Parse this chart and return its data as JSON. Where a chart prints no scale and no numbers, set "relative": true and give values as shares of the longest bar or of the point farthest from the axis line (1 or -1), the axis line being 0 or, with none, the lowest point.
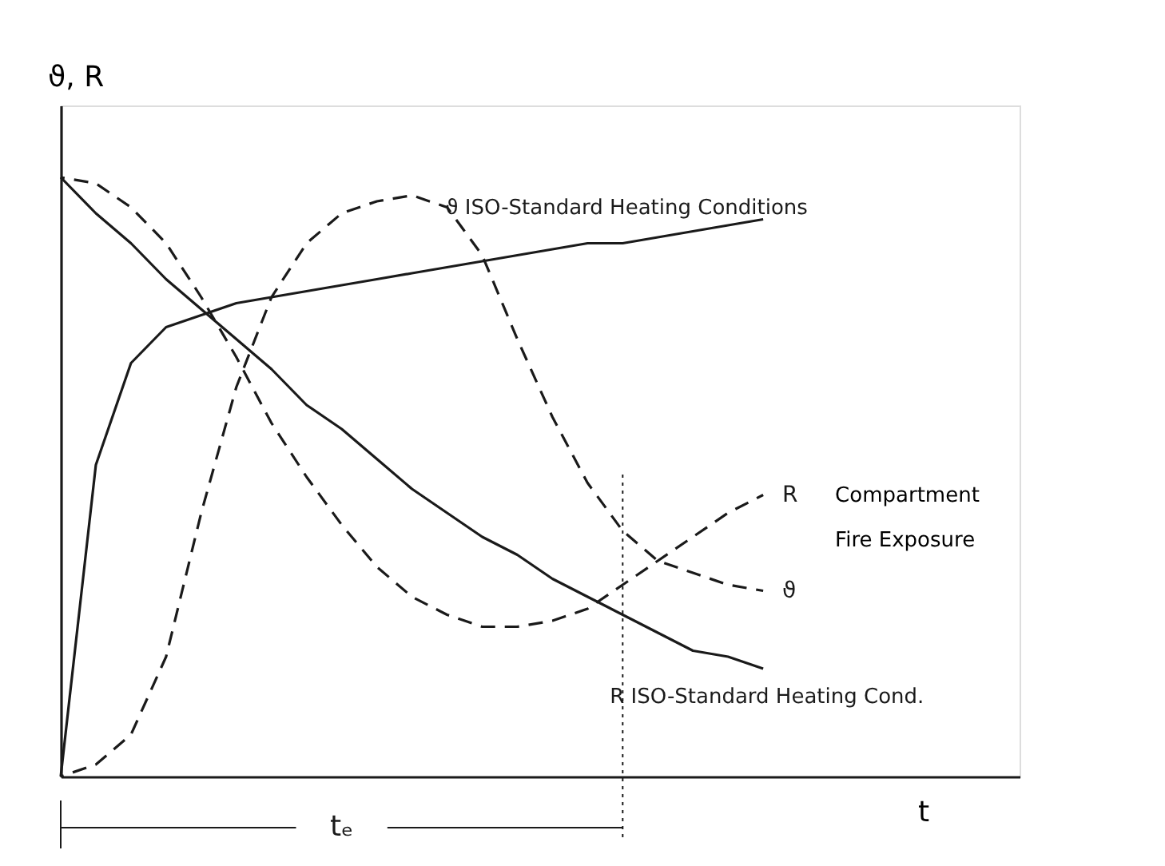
{
  "chart_data": {
    "type": "line",
    "relative": true,
    "tick_labels": false,
    "xlabel": "t",
    "ylabel": "ϑ, R",
    "categories": [
      null,
      null,
      null,
      null,
      null,
      null,
      null,
      null,
      null,
      null,
      null,
      null,
      null,
      null,
      null,
      null,
      null,
      null,
      null,
      null,
      null
    ],
    "series": [
      {
        "name": "ϑ ISO-Standard Heating Conditions",
        "color": "#1a1a1a",
        "line_style": "solid",
        "values": [
          0,
          0.52,
          0.69,
          0.75,
          0.77,
          0.79,
          0.8,
          0.81,
          0.82,
          0.83,
          0.84,
          0.85,
          0.86,
          0.87,
          0.88,
          0.89,
          0.89,
          0.9,
          0.91,
          0.92,
          0.93
        ]
      },
      {
        "name": "R ISO-Standard Heating Cond.",
        "color": "#1a1a1a",
        "line_style": "solid",
        "values": [
          1,
          0.94,
          0.89,
          0.83,
          0.78,
          0.73,
          0.68,
          0.62,
          0.58,
          0.53,
          0.48,
          0.44,
          0.4,
          0.37,
          0.33,
          0.3,
          0.27,
          0.24,
          0.21,
          0.2,
          0.18
        ]
      },
      {
        "name": "ϑ",
        "color": "#1a1a1a",
        "line_style": "dashed",
        "values": [
          0,
          0.02,
          0.07,
          0.2,
          0.44,
          0.65,
          0.8,
          0.89,
          0.94,
          0.96,
          0.97,
          0.95,
          0.87,
          0.73,
          0.6,
          0.49,
          0.41,
          0.36,
          0.34,
          0.32,
          0.31
        ]
      },
      {
        "name": "R",
        "color": "#1a1a1a",
        "line_style": "dashed",
        "values": [
          1,
          0.99,
          0.95,
          0.89,
          0.8,
          0.7,
          0.59,
          0.5,
          0.42,
          0.35,
          0.3,
          0.27,
          0.25,
          0.25,
          0.26,
          0.28,
          0.32,
          0.36,
          0.4,
          0.44,
          0.47
        ]
      }
    ],
    "annotations": [
      "Compartment",
      "Fire Exposure",
      "tₑ"
    ]
  }
}
